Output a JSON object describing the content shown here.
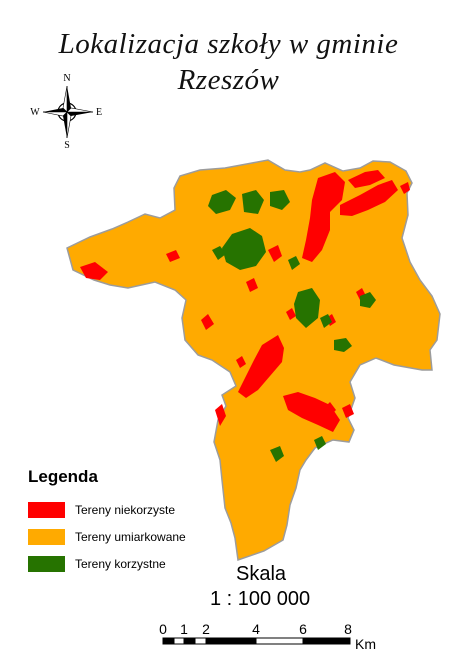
{
  "title": {
    "line1": "Lokalizacja szkoły w gminie",
    "line2": "Rzeszów"
  },
  "compass": {
    "icon": "north-arrow-compass-rose",
    "n": "N",
    "s": "S",
    "e": "E",
    "w": "W"
  },
  "legend": {
    "title": "Legenda",
    "items": [
      {
        "label": "Tereny niekorzyste",
        "color": "#ff0000"
      },
      {
        "label": "Tereny umiarkowane",
        "color": "#ffaa00"
      },
      {
        "label": "Tereny korzystne",
        "color": "#267300"
      }
    ]
  },
  "scale": {
    "title": "Skala",
    "ratio": "1 : 100 000",
    "ticks": [
      "0",
      "1",
      "2",
      "4",
      "6",
      "8"
    ],
    "unit": "Km"
  },
  "colors": {
    "unfavorable": "#ff0000",
    "moderate": "#ffaa00",
    "favorable": "#267300",
    "outline": "#9c9c9c"
  }
}
